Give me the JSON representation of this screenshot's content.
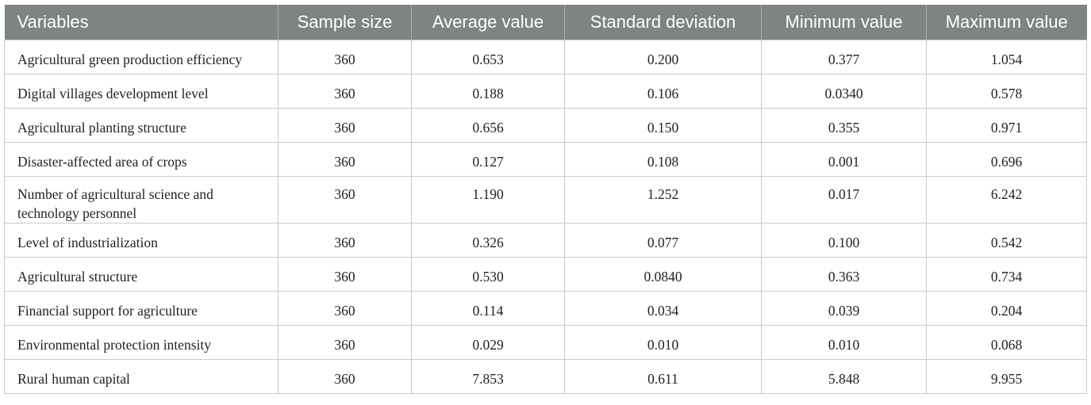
{
  "table": {
    "headers": [
      "Variables",
      "Sample size",
      "Average value",
      "Standard deviation",
      "Minimum value",
      "Maximum value"
    ],
    "rows": [
      [
        "Agricultural green production efficiency",
        "360",
        "0.653",
        "0.200",
        "0.377",
        "1.054"
      ],
      [
        "Digital villages development level",
        "360",
        "0.188",
        "0.106",
        "0.0340",
        "0.578"
      ],
      [
        "Agricultural planting structure",
        "360",
        "0.656",
        "0.150",
        "0.355",
        "0.971"
      ],
      [
        "Disaster-affected area of crops",
        "360",
        "0.127",
        "0.108",
        "0.001",
        "0.696"
      ],
      [
        "Number of agricultural science and technology personnel",
        "360",
        "1.190",
        "1.252",
        "0.017",
        "6.242"
      ],
      [
        "Level of industrialization",
        "360",
        "0.326",
        "0.077",
        "0.100",
        "0.542"
      ],
      [
        "Agricultural structure",
        "360",
        "0.530",
        "0.0840",
        "0.363",
        "0.734"
      ],
      [
        "Financial support for agriculture",
        "360",
        "0.114",
        "0.034",
        "0.039",
        "0.204"
      ],
      [
        "Environmental protection intensity",
        "360",
        "0.029",
        "0.010",
        "0.010",
        "0.068"
      ],
      [
        "Rural human capital",
        "360",
        "7.853",
        "0.611",
        "5.848",
        "9.955"
      ]
    ]
  }
}
